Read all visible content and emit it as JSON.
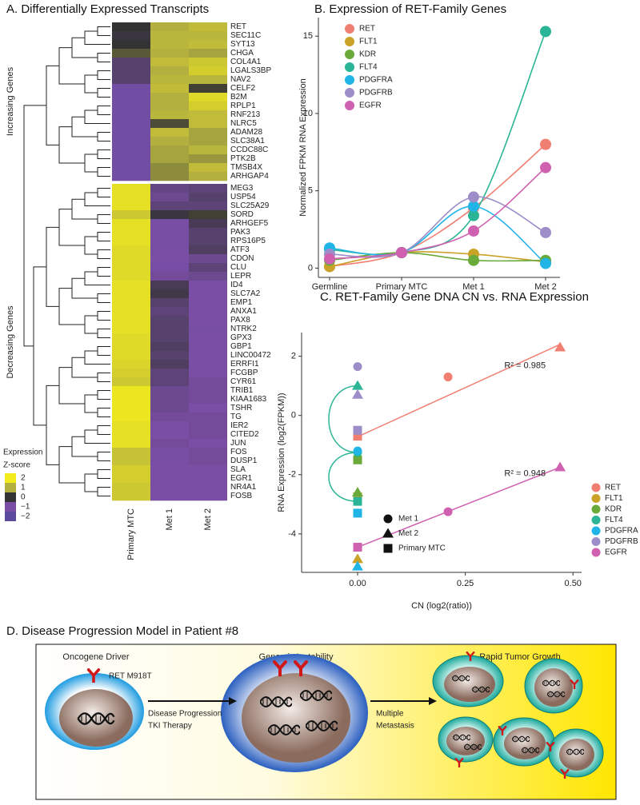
{
  "chart_data": [
    {
      "type": "heatmap",
      "title": "A. Differentially Expressed Transcripts",
      "columns": [
        "Primary MTC",
        "Met 1",
        "Met 2"
      ],
      "groups": [
        {
          "label": "Increasing Genes",
          "rows": [
            "RET",
            "SEC11C",
            "SYT13",
            "CHGA",
            "COL4A1",
            "LGALS3BP",
            "NAV2",
            "CELF2",
            "B2M",
            "RPLP1",
            "RNF213",
            "NLRC5",
            "ADAM28",
            "SLC38A1",
            "CCDC88C",
            "PTK2B",
            "TMSB4X",
            "ARHGAP4"
          ],
          "values": [
            [
              0,
              1,
              1.2
            ],
            [
              -0.1,
              1.1,
              1.1
            ],
            [
              0,
              1.1,
              1.2
            ],
            [
              0.3,
              1,
              0.9
            ],
            [
              -0.5,
              1.2,
              1.4
            ],
            [
              -0.5,
              1,
              1.5
            ],
            [
              -0.5,
              1.1,
              1.1
            ],
            [
              -1.3,
              1.2,
              0.1
            ],
            [
              -1.3,
              1,
              1.7
            ],
            [
              -1.3,
              1,
              1.5
            ],
            [
              -1.3,
              1.1,
              1.2
            ],
            [
              -1.3,
              0.2,
              1.2
            ],
            [
              -1.3,
              1.2,
              0.9
            ],
            [
              -1.3,
              1,
              0.9
            ],
            [
              -1.3,
              0.9,
              1.1
            ],
            [
              -1.3,
              0.9,
              0.8
            ],
            [
              -1.3,
              0.7,
              1.2
            ],
            [
              -1.3,
              0.7,
              1
            ]
          ]
        },
        {
          "label": "Decreasing Genes",
          "rows": [
            "MEG3",
            "USP54",
            "SLC25A29",
            "SORD",
            "ARHGEF5",
            "PAK3",
            "RPS16P5",
            "ATF3",
            "CDON",
            "CLU",
            "LEPR",
            "ID4",
            "SLC7A2",
            "EMP1",
            "ANXA1",
            "PAX8",
            "NTRK2",
            "GPX3",
            "GBP1",
            "LINC00472",
            "ERRFI1",
            "FCGBP",
            "CYR61",
            "TRIB1",
            "KIAA1683",
            "TSHR",
            "TG",
            "IER2",
            "CITED2",
            "JUN",
            "FOS",
            "DUSP1",
            "SLA",
            "EGR1",
            "NR4A1",
            "FOSB"
          ],
          "values": [
            [
              1.8,
              -0.7,
              -0.6
            ],
            [
              1.8,
              -0.8,
              -0.5
            ],
            [
              1.8,
              -0.6,
              -0.6
            ],
            [
              1.4,
              -0.1,
              0.1
            ],
            [
              1.8,
              -1.1,
              -0.3
            ],
            [
              1.8,
              -1.1,
              -0.5
            ],
            [
              1.8,
              -1.1,
              -0.5
            ],
            [
              1.7,
              -1.1,
              -0.4
            ],
            [
              1.7,
              -1,
              -0.8
            ],
            [
              1.7,
              -1.2,
              -0.6
            ],
            [
              1.7,
              -0.9,
              -0.8
            ],
            [
              1.8,
              -0.3,
              -1
            ],
            [
              1.8,
              -0.2,
              -1
            ],
            [
              1.8,
              -0.5,
              -1
            ],
            [
              1.8,
              -0.6,
              -1
            ],
            [
              1.8,
              -0.5,
              -1
            ],
            [
              1.8,
              -0.5,
              -1.1
            ],
            [
              1.7,
              -0.5,
              -1
            ],
            [
              1.7,
              -0.4,
              -1
            ],
            [
              1.7,
              -0.5,
              -1
            ],
            [
              1.6,
              -0.4,
              -1
            ],
            [
              1.5,
              -0.6,
              -1
            ],
            [
              1.4,
              -0.6,
              -0.9
            ],
            [
              1.9,
              -0.8,
              -0.9
            ],
            [
              1.9,
              -0.8,
              -0.9
            ],
            [
              1.9,
              -0.8,
              -1
            ],
            [
              1.9,
              -0.9,
              -0.9
            ],
            [
              1.8,
              -1,
              -0.9
            ],
            [
              1.8,
              -1,
              -0.9
            ],
            [
              1.8,
              -0.9,
              -1
            ],
            [
              1.3,
              -1.1,
              -0.9
            ],
            [
              1.3,
              -1.1,
              -0.9
            ],
            [
              1.5,
              -1,
              -1
            ],
            [
              1.5,
              -1,
              -1
            ],
            [
              1.4,
              -1,
              -1
            ],
            [
              1.4,
              -1,
              -1
            ]
          ]
        }
      ],
      "legend": {
        "title": [
          "Expression",
          "Z-score"
        ],
        "ticks": [
          2,
          1,
          0,
          {
            "value": -1,
            "label": "−1"
          },
          {
            "value": -2,
            "label": "−2"
          }
        ],
        "colors": [
          "#f2ec1c",
          "#b3b040",
          "#333333",
          "#7b4ea6",
          "#5c4a9e"
        ]
      }
    },
    {
      "type": "line",
      "title": "B. Expression of RET-Family Genes",
      "ylabel": "Normalized FPKM RNA Expression",
      "categories": [
        "Germline",
        "Primary MTC",
        "Met 1",
        "Met 2"
      ],
      "ylim": [
        -0.6,
        16.2
      ],
      "yticks": [
        0,
        5,
        10,
        15
      ],
      "series": [
        {
          "name": "RET",
          "color": "#f07f72",
          "values": [
            0.1,
            1,
            3.9,
            8.0
          ]
        },
        {
          "name": "FLT1",
          "color": "#c9a227",
          "values": [
            0.1,
            1,
            0.9,
            0.4
          ]
        },
        {
          "name": "KDR",
          "color": "#6aaa3a",
          "values": [
            0.5,
            1,
            0.5,
            0.5
          ]
        },
        {
          "name": "FLT4",
          "color": "#2bb596",
          "values": [
            1.2,
            1,
            3.4,
            15.3
          ]
        },
        {
          "name": "PDGFRA",
          "color": "#20b5e6",
          "values": [
            1.3,
            1,
            4.0,
            0.3
          ]
        },
        {
          "name": "PDGFRB",
          "color": "#9d8dc8",
          "values": [
            0.9,
            1,
            4.6,
            2.3
          ]
        },
        {
          "name": "EGFR",
          "color": "#d060b0",
          "values": [
            0.6,
            1,
            2.4,
            6.5
          ]
        }
      ]
    },
    {
      "type": "scatter",
      "title": "C. RET-Family Gene DNA CN vs. RNA Expression",
      "xlabel": "CN (log2(ratio))",
      "ylabel": "RNA Expression (log2(FPKM))",
      "xlim": [
        -0.13,
        0.52
      ],
      "ylim": [
        -5.3,
        2.8
      ],
      "xticks": [
        {
          "value": 0,
          "label": "0.00"
        },
        {
          "value": 0.25,
          "label": "0.25"
        },
        {
          "value": 0.5,
          "label": "0.50"
        }
      ],
      "yticks": [
        -4,
        -2,
        0,
        2
      ],
      "shape_legend": [
        {
          "name": "Met 1",
          "shape": "circle"
        },
        {
          "name": "Met 2",
          "shape": "triangle"
        },
        {
          "name": "Primary MTC",
          "shape": "square"
        }
      ],
      "series": [
        {
          "name": "RET",
          "color": "#f07f72",
          "x": [
            0.21,
            0.47,
            0
          ],
          "y": [
            1.3,
            2.3,
            -0.7
          ],
          "shapes": [
            "circle",
            "triangle",
            "square"
          ]
        },
        {
          "name": "FLT1",
          "color": "#c9a227",
          "x": [
            0,
            0
          ],
          "y": [
            -4.85,
            -2.75
          ],
          "shapes": [
            "triangle",
            "square"
          ]
        },
        {
          "name": "KDR",
          "color": "#6aaa3a",
          "x": [
            0,
            0
          ],
          "y": [
            -2.6,
            -1.5
          ],
          "shapes": [
            "triangle",
            "square"
          ]
        },
        {
          "name": "FLT4",
          "color": "#2bb596",
          "x": [
            0,
            0,
            0
          ],
          "y": [
            1.0,
            -1.25,
            -2.9
          ],
          "shapes": [
            "triangle",
            "circle",
            "square"
          ],
          "connect": true
        },
        {
          "name": "PDGFRA",
          "color": "#20b5e6",
          "x": [
            0,
            0,
            0
          ],
          "y": [
            -1.2,
            -5.1,
            -3.3
          ],
          "shapes": [
            "circle",
            "triangle",
            "square"
          ]
        },
        {
          "name": "PDGFRB",
          "color": "#9d8dc8",
          "x": [
            0,
            0,
            0
          ],
          "y": [
            1.65,
            0.7,
            -0.5
          ],
          "shapes": [
            "circle",
            "triangle",
            "square"
          ]
        },
        {
          "name": "EGFR",
          "color": "#d060b0",
          "x": [
            0.21,
            0.47,
            0
          ],
          "y": [
            -3.25,
            -1.75,
            -4.45
          ],
          "shapes": [
            "circle",
            "triangle",
            "square"
          ]
        }
      ],
      "fits": [
        {
          "color": "#f07f72",
          "x": [
            0,
            0.47
          ],
          "y": [
            -0.72,
            2.4
          ],
          "label": "R² = 0.985"
        },
        {
          "color": "#d060b0",
          "x": [
            0,
            0.47
          ],
          "y": [
            -4.45,
            -1.75
          ],
          "label": "R² = 0.948"
        }
      ]
    }
  ],
  "diagram": {
    "title": "D. Disease Progression Model in Patient #8",
    "stages": [
      "Oncogene Driver",
      "Genomic Instability",
      "Rapid Tumor Growth"
    ],
    "mutation": "RET M918T",
    "arrows": [
      [
        "Disease Progression",
        "TKI Therapy"
      ],
      [
        "Multiple",
        "Metastasis"
      ]
    ]
  }
}
